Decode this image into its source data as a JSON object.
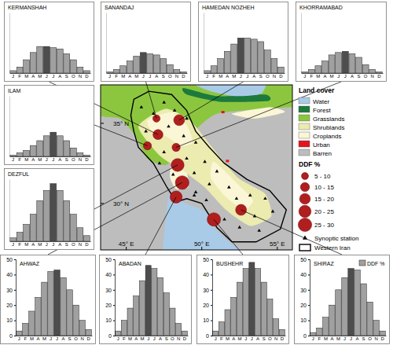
{
  "chart_data": [
    {
      "type": "bar",
      "title": "KERMANSHAH",
      "categories": [
        "J",
        "F",
        "M",
        "A",
        "M",
        "J",
        "J",
        "A",
        "S",
        "O",
        "N",
        "D"
      ],
      "values": [
        2,
        5,
        11,
        17,
        22,
        22,
        21,
        20,
        16,
        11,
        5,
        2
      ],
      "colors": [
        "#a0a0a0",
        "#a0a0a0",
        "#a0a0a0",
        "#a0a0a0",
        "#a0a0a0",
        "#4d4d4d",
        "#a0a0a0",
        "#a0a0a0",
        "#a0a0a0",
        "#a0a0a0",
        "#a0a0a0",
        "#a0a0a0"
      ],
      "ylim": [
        0,
        50
      ],
      "tick_labels": "x"
    },
    {
      "type": "bar",
      "title": "SANANDAJ",
      "categories": [
        "J",
        "F",
        "M",
        "A",
        "M",
        "J",
        "J",
        "A",
        "S",
        "O",
        "N",
        "D"
      ],
      "values": [
        1,
        3,
        6,
        10,
        14,
        17,
        16,
        15,
        12,
        7,
        3,
        1
      ],
      "colors": [
        "#a0a0a0",
        "#a0a0a0",
        "#a0a0a0",
        "#a0a0a0",
        "#a0a0a0",
        "#4d4d4d",
        "#a0a0a0",
        "#a0a0a0",
        "#a0a0a0",
        "#a0a0a0",
        "#a0a0a0",
        "#a0a0a0"
      ],
      "ylim": [
        0,
        50
      ],
      "tick_labels": "x"
    },
    {
      "type": "bar",
      "title": "HAMEDAN NOZHEH",
      "categories": [
        "J",
        "F",
        "M",
        "A",
        "M",
        "J",
        "J",
        "A",
        "S",
        "O",
        "N",
        "D"
      ],
      "values": [
        2,
        6,
        12,
        18,
        24,
        29,
        29,
        28,
        26,
        19,
        12,
        5
      ],
      "colors": [
        "#a0a0a0",
        "#a0a0a0",
        "#a0a0a0",
        "#a0a0a0",
        "#a0a0a0",
        "#4d4d4d",
        "#a0a0a0",
        "#a0a0a0",
        "#a0a0a0",
        "#a0a0a0",
        "#a0a0a0",
        "#a0a0a0"
      ],
      "ylim": [
        0,
        50
      ],
      "tick_labels": "x"
    },
    {
      "type": "bar",
      "title": "KHORRAMABAD",
      "categories": [
        "J",
        "F",
        "M",
        "A",
        "M",
        "J",
        "J",
        "A",
        "S",
        "O",
        "N",
        "D"
      ],
      "values": [
        1,
        3,
        6,
        10,
        15,
        17,
        18,
        16,
        13,
        7,
        3,
        1
      ],
      "colors": [
        "#a0a0a0",
        "#a0a0a0",
        "#a0a0a0",
        "#a0a0a0",
        "#a0a0a0",
        "#a0a0a0",
        "#4d4d4d",
        "#a0a0a0",
        "#a0a0a0",
        "#a0a0a0",
        "#a0a0a0",
        "#a0a0a0"
      ],
      "ylim": [
        0,
        50
      ],
      "tick_labels": "x"
    },
    {
      "type": "bar",
      "title": "ILAM",
      "categories": [
        "J",
        "F",
        "M",
        "A",
        "M",
        "J",
        "J",
        "A",
        "S",
        "O",
        "N",
        "D"
      ],
      "values": [
        1,
        3,
        5,
        9,
        13,
        17,
        20,
        17,
        13,
        7,
        3,
        1
      ],
      "colors": [
        "#a0a0a0",
        "#a0a0a0",
        "#a0a0a0",
        "#a0a0a0",
        "#a0a0a0",
        "#a0a0a0",
        "#4d4d4d",
        "#a0a0a0",
        "#a0a0a0",
        "#a0a0a0",
        "#a0a0a0",
        "#a0a0a0"
      ],
      "ylim": [
        0,
        50
      ],
      "tick_labels": "x"
    },
    {
      "type": "bar",
      "title": "DEZFUL",
      "categories": [
        "J",
        "F",
        "M",
        "A",
        "M",
        "J",
        "J",
        "A",
        "S",
        "O",
        "N",
        "D"
      ],
      "values": [
        3,
        8,
        15,
        24,
        36,
        45,
        51,
        45,
        36,
        24,
        12,
        5
      ],
      "colors": [
        "#a0a0a0",
        "#a0a0a0",
        "#a0a0a0",
        "#a0a0a0",
        "#a0a0a0",
        "#a0a0a0",
        "#4d4d4d",
        "#a0a0a0",
        "#a0a0a0",
        "#a0a0a0",
        "#a0a0a0",
        "#a0a0a0"
      ],
      "ylim": [
        0,
        55
      ],
      "tick_labels": "x"
    },
    {
      "type": "bar",
      "title": "AHWAZ",
      "categories": [
        "J",
        "F",
        "M",
        "A",
        "M",
        "J",
        "J",
        "A",
        "S",
        "O",
        "N",
        "D"
      ],
      "values": [
        3,
        8,
        16,
        25,
        35,
        42,
        43,
        38,
        30,
        20,
        10,
        4
      ],
      "colors": [
        "#a0a0a0",
        "#a0a0a0",
        "#a0a0a0",
        "#a0a0a0",
        "#a0a0a0",
        "#a0a0a0",
        "#4d4d4d",
        "#a0a0a0",
        "#a0a0a0",
        "#a0a0a0",
        "#a0a0a0",
        "#a0a0a0"
      ],
      "ylim": [
        0,
        50
      ],
      "yticks": [
        0,
        10,
        20,
        30,
        40,
        50
      ]
    },
    {
      "type": "bar",
      "title": "ABADAN",
      "categories": [
        "J",
        "F",
        "M",
        "A",
        "M",
        "J",
        "J",
        "A",
        "S",
        "O",
        "N",
        "D"
      ],
      "values": [
        3,
        10,
        18,
        26,
        36,
        46,
        44,
        38,
        28,
        18,
        8,
        3
      ],
      "colors": [
        "#a0a0a0",
        "#a0a0a0",
        "#a0a0a0",
        "#a0a0a0",
        "#a0a0a0",
        "#4d4d4d",
        "#a0a0a0",
        "#a0a0a0",
        "#a0a0a0",
        "#a0a0a0",
        "#a0a0a0",
        "#a0a0a0"
      ],
      "ylim": [
        0,
        50
      ],
      "yticks": [
        0,
        10,
        20,
        30,
        40,
        50
      ]
    },
    {
      "type": "bar",
      "title": "BUSHEHR",
      "categories": [
        "J",
        "F",
        "M",
        "A",
        "M",
        "J",
        "J",
        "A",
        "S",
        "O",
        "N",
        "D"
      ],
      "values": [
        3,
        9,
        17,
        25,
        35,
        44,
        48,
        44,
        35,
        24,
        11,
        4
      ],
      "colors": [
        "#a0a0a0",
        "#a0a0a0",
        "#a0a0a0",
        "#a0a0a0",
        "#a0a0a0",
        "#a0a0a0",
        "#4d4d4d",
        "#a0a0a0",
        "#a0a0a0",
        "#a0a0a0",
        "#a0a0a0",
        "#a0a0a0"
      ],
      "ylim": [
        0,
        50
      ],
      "yticks": [
        0,
        10,
        20,
        30,
        40,
        50
      ]
    },
    {
      "type": "bar",
      "title": "SHIRAZ",
      "categories": [
        "J",
        "F",
        "M",
        "A",
        "M",
        "J",
        "J",
        "A",
        "S",
        "O",
        "N",
        "D"
      ],
      "series": [
        {
          "name": "DDF %",
          "color": "#a0a0a0",
          "values": [
            2,
            5,
            12,
            20,
            30,
            38,
            44,
            43,
            34,
            22,
            10,
            3
          ],
          "colors": [
            "#a0a0a0",
            "#a0a0a0",
            "#a0a0a0",
            "#a0a0a0",
            "#a0a0a0",
            "#a0a0a0",
            "#4d4d4d",
            "#a0a0a0",
            "#a0a0a0",
            "#a0a0a0",
            "#a0a0a0",
            "#a0a0a0"
          ]
        }
      ],
      "legend": "upper right",
      "ylim": [
        0,
        50
      ],
      "yticks": [
        0,
        10,
        20,
        30,
        40,
        50
      ]
    }
  ],
  "map": {
    "xlim": [
      43.3,
      56
    ],
    "ylim": [
      27.1,
      37.4
    ],
    "xticks": [
      {
        "value": 45,
        "label": "45° E"
      },
      {
        "value": 50,
        "label": "50° E"
      },
      {
        "value": 55,
        "label": "55° E"
      }
    ],
    "yticks": [
      {
        "value": 35,
        "label": "35° N"
      },
      {
        "value": 30,
        "label": "30° N"
      }
    ],
    "land_cover_title": "Land cover",
    "land_cover": [
      {
        "label": "Water",
        "color": "#a9cbe8"
      },
      {
        "label": "Forest",
        "color": "#1c7a3c"
      },
      {
        "label": "Grasslands",
        "color": "#8cc63f"
      },
      {
        "label": "Shrublands",
        "color": "#ecebb0"
      },
      {
        "label": "Croplands",
        "color": "#faf6d6"
      },
      {
        "label": "Urban",
        "color": "#e3141c"
      },
      {
        "label": "Barren",
        "color": "#bdbdbd"
      }
    ],
    "ddf_title": "DDF %",
    "ddf_classes": [
      {
        "label": "5 - 10",
        "min": 5,
        "max": 10
      },
      {
        "label": "10 - 15",
        "min": 10,
        "max": 15
      },
      {
        "label": "15 - 20",
        "min": 15,
        "max": 20
      },
      {
        "label": "20 - 25",
        "min": 20,
        "max": 25
      },
      {
        "label": "25 - 30",
        "min": 25,
        "max": 30
      }
    ],
    "stations": [
      {
        "lon": 47.1,
        "lat": 34.3,
        "ddf": 15
      },
      {
        "lon": 47.0,
        "lat": 35.3,
        "ddf": 8
      },
      {
        "lon": 48.5,
        "lat": 35.2,
        "ddf": 18
      },
      {
        "lon": 48.3,
        "lat": 33.5,
        "ddf": 10
      },
      {
        "lon": 46.4,
        "lat": 33.6,
        "ddf": 10
      },
      {
        "lon": 48.4,
        "lat": 32.4,
        "ddf": 25
      },
      {
        "lon": 48.7,
        "lat": 31.3,
        "ddf": 28
      },
      {
        "lon": 48.3,
        "lat": 30.4,
        "ddf": 22
      },
      {
        "lon": 50.8,
        "lat": 29.0,
        "ddf": 27
      },
      {
        "lon": 52.6,
        "lat": 29.6,
        "ddf": 18
      }
    ],
    "synoptic_label": "Synoptic station",
    "synoptic_stations": [
      [
        46.0,
        36.0
      ],
      [
        47.5,
        36.3
      ],
      [
        46.8,
        35.6
      ],
      [
        48.2,
        35.8
      ],
      [
        49.0,
        35.3
      ],
      [
        47.8,
        34.8
      ],
      [
        46.3,
        34.5
      ],
      [
        48.8,
        34.2
      ],
      [
        49.6,
        33.8
      ],
      [
        47.5,
        33.2
      ],
      [
        49.0,
        32.8
      ],
      [
        50.2,
        32.6
      ],
      [
        47.2,
        32.5
      ],
      [
        48.1,
        31.8
      ],
      [
        49.5,
        31.9
      ],
      [
        51.0,
        32.0
      ],
      [
        50.5,
        31.2
      ],
      [
        51.8,
        31.0
      ],
      [
        49.6,
        30.7
      ],
      [
        52.3,
        30.3
      ],
      [
        53.2,
        30.5
      ],
      [
        54.2,
        30.3
      ],
      [
        53.5,
        29.2
      ],
      [
        54.7,
        29.5
      ],
      [
        51.5,
        29.0
      ],
      [
        52.5,
        28.5
      ],
      [
        53.8,
        28.3
      ],
      [
        50.3,
        30.2
      ],
      [
        49.5,
        30.5
      ]
    ],
    "region_label": "Western Iran"
  }
}
